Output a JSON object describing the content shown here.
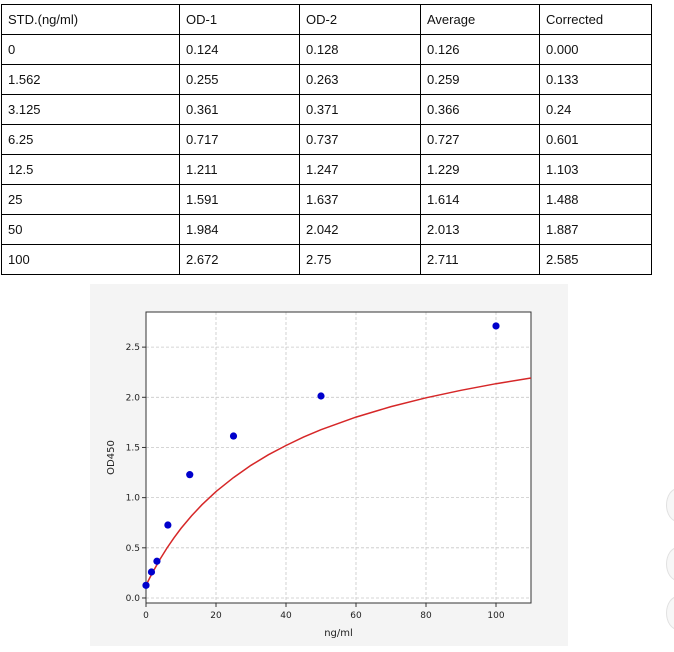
{
  "table": {
    "headers": [
      "STD.(ng/ml)",
      "OD-1",
      "OD-2",
      "Average",
      "Corrected"
    ],
    "rows": [
      [
        "0",
        "0.124",
        "0.128",
        "0.126",
        "0.000"
      ],
      [
        "1.562",
        "0.255",
        "0.263",
        "0.259",
        "0.133"
      ],
      [
        "3.125",
        "0.361",
        "0.371",
        "0.366",
        "0.24"
      ],
      [
        "6.25",
        "0.717",
        "0.737",
        "0.727",
        "0.601"
      ],
      [
        "12.5",
        "1.211",
        "1.247",
        "1.229",
        "1.103"
      ],
      [
        "25",
        "1.591",
        "1.637",
        "1.614",
        "1.488"
      ],
      [
        "50",
        "1.984",
        "2.042",
        "2.013",
        "1.887"
      ],
      [
        "100",
        "2.672",
        "2.75",
        "2.711",
        "2.585"
      ]
    ]
  },
  "chart_data": {
    "type": "scatter",
    "title": "",
    "xlabel": "ng/ml",
    "ylabel": "OD450",
    "xlim": [
      0,
      110
    ],
    "ylim": [
      -0.05,
      2.85
    ],
    "xticks": [
      0,
      20,
      40,
      60,
      80,
      100
    ],
    "yticks": [
      0.0,
      0.5,
      1.0,
      1.5,
      2.0,
      2.5
    ],
    "grid": true,
    "series": [
      {
        "kind": "points",
        "color": "#0000cc",
        "x": [
          0,
          1.562,
          3.125,
          6.25,
          12.5,
          25,
          50,
          100
        ],
        "y": [
          0.126,
          0.259,
          0.366,
          0.727,
          1.229,
          1.614,
          2.013,
          2.711
        ]
      },
      {
        "kind": "fit-curve",
        "color": "#d62728",
        "x": [
          0,
          1,
          2,
          4,
          6,
          8,
          10,
          13,
          16,
          20,
          25,
          30,
          35,
          40,
          45,
          50,
          60,
          70,
          80,
          90,
          100,
          110
        ],
        "y": [
          0.126,
          0.195,
          0.262,
          0.386,
          0.498,
          0.6,
          0.693,
          0.818,
          0.93,
          1.06,
          1.2,
          1.322,
          1.428,
          1.52,
          1.603,
          1.677,
          1.803,
          1.907,
          1.995,
          2.07,
          2.135,
          2.192
        ]
      }
    ]
  }
}
